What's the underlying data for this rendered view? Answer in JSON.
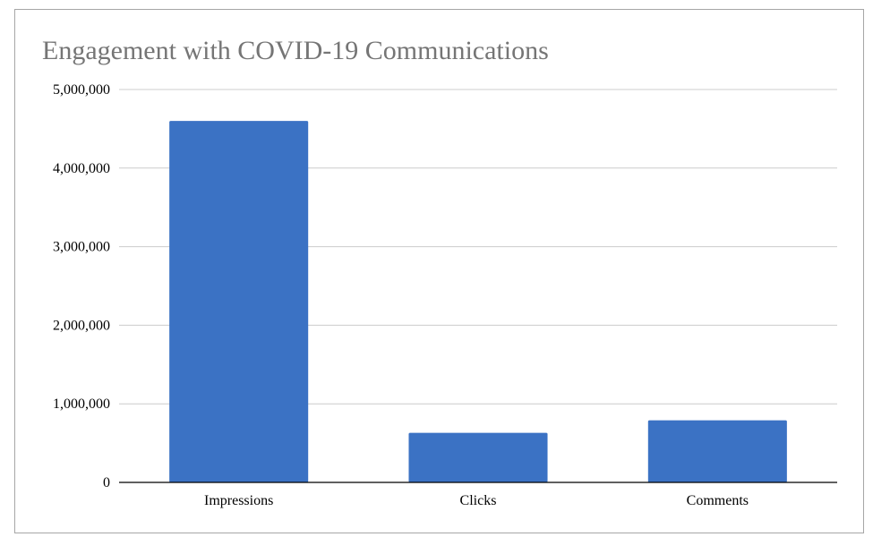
{
  "chart_data": {
    "type": "bar",
    "title": "Engagement with COVID-19 Communications",
    "categories": [
      "Impressions",
      "Clicks",
      "Comments"
    ],
    "values": [
      4600000,
      630000,
      790000
    ],
    "xlabel": "",
    "ylabel": "",
    "ylim": [
      0,
      5000000
    ],
    "yticks": [
      0,
      1000000,
      2000000,
      3000000,
      4000000,
      5000000
    ],
    "ytick_labels": [
      "0",
      "1,000,000",
      "2,000,000",
      "3,000,000",
      "4,000,000",
      "5,000,000"
    ],
    "grid": true,
    "legend": "none",
    "bar_color": "#3b72c4",
    "grid_color": "#cccccc",
    "axis_color": "#000000"
  }
}
